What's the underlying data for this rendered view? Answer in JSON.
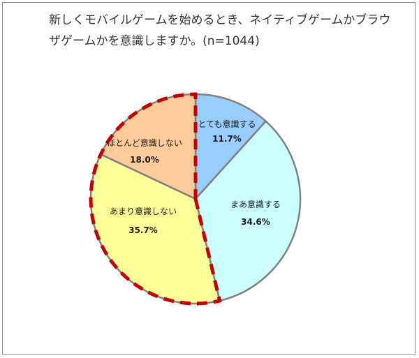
{
  "chart_data": {
    "type": "pie",
    "title": "新しくモバイルゲームを始めるとき、ネイティブゲームかブラウザゲームかを意識しますか。(n=1044)",
    "slices": [
      {
        "label": "とても意識する",
        "value": 11.7,
        "value_label": "11.7%",
        "color": "#99ccff"
      },
      {
        "label": "まあ意識する",
        "value": 34.6,
        "value_label": "34.6%",
        "color": "#ccffff"
      },
      {
        "label": "あまり意識しない",
        "value": 35.7,
        "value_label": "35.7%",
        "color": "#ffff99"
      },
      {
        "label": "ほとんど意識しない",
        "value": 18.0,
        "value_label": "18.0%",
        "color": "#ffcc99"
      }
    ],
    "highlight": {
      "slices": [
        "あまり意識しない",
        "ほとんど意識しない"
      ],
      "style": "dashed",
      "color": "#c00000"
    },
    "slice_border_color": "#808080",
    "legend": "none",
    "start_angle": "12 o'clock",
    "direction": "clockwise"
  }
}
